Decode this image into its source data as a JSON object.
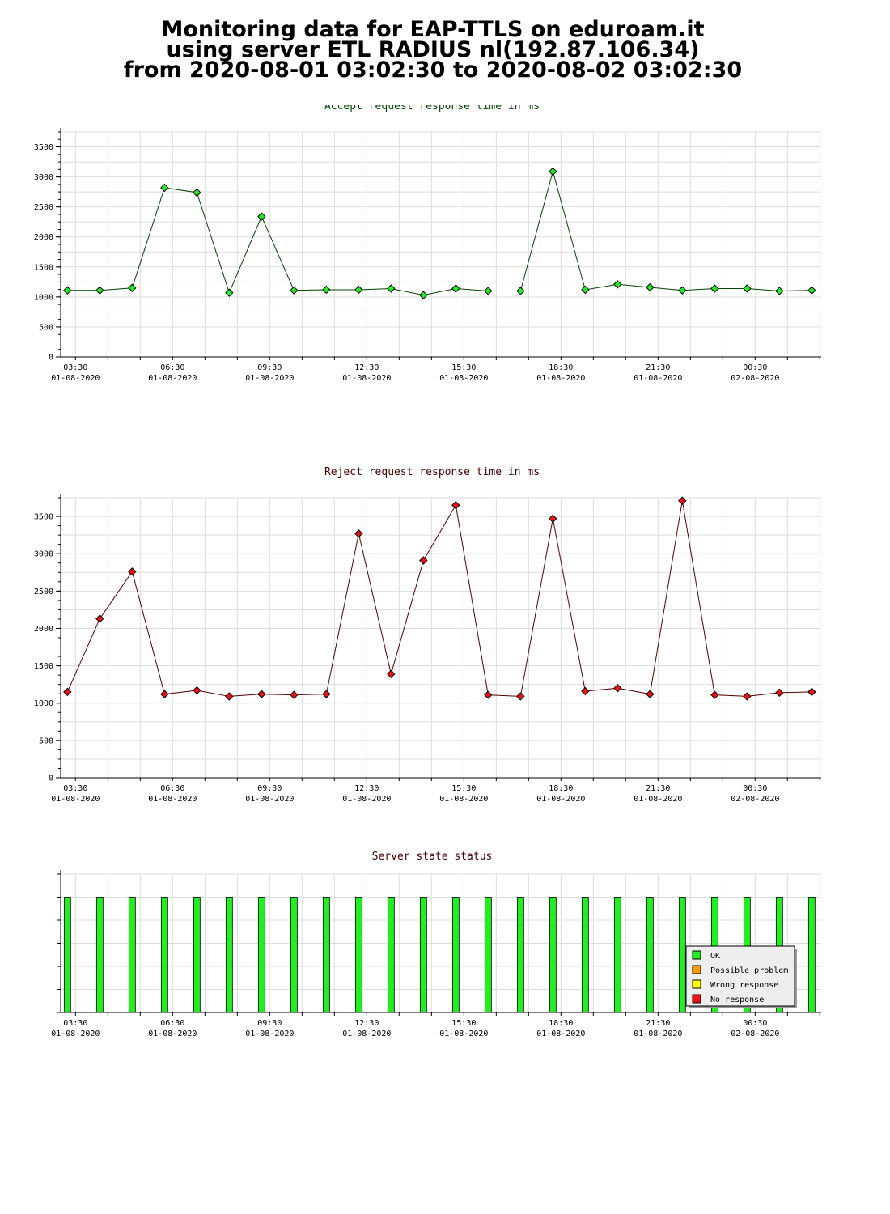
{
  "page": {
    "title_lines": [
      "Monitoring data for EAP-TTLS on eduroam.it",
      "using server ETL RADIUS nl(192.87.106.34)",
      "from 2020-08-01 03:02:30 to 2020-08-02 03:02:30"
    ]
  },
  "x_axis": {
    "time_labels": [
      "03:30",
      "06:30",
      "09:30",
      "12:30",
      "15:30",
      "18:30",
      "21:30",
      "00:30"
    ],
    "date_labels": [
      "01-08-2020",
      "01-08-2020",
      "01-08-2020",
      "01-08-2020",
      "01-08-2020",
      "01-08-2020",
      "01-08-2020",
      "02-08-2020"
    ]
  },
  "chart_data": [
    {
      "type": "line",
      "title": "Accept request response time in ms",
      "title_color": "#004400",
      "line_color": "#004400",
      "marker_color": "#22ee22",
      "grid": true,
      "ylim": [
        0,
        3750
      ],
      "yticks": [
        0,
        500,
        1000,
        1500,
        2000,
        2500,
        3000,
        3500
      ],
      "series": [
        {
          "x": [
            "03:15",
            "04:15",
            "05:15",
            "06:15",
            "07:15",
            "08:15",
            "09:15",
            "10:15",
            "11:15",
            "12:15",
            "13:15",
            "14:15",
            "15:15",
            "16:15",
            "17:15",
            "18:15",
            "19:15",
            "20:15",
            "21:15",
            "22:15",
            "23:15",
            "00:15",
            "01:15",
            "02:15"
          ],
          "values": [
            1110,
            1110,
            1150,
            2820,
            2740,
            1070,
            2340,
            1110,
            1120,
            1120,
            1140,
            1030,
            1140,
            1100,
            1100,
            3090,
            1120,
            1210,
            1160,
            1110,
            1140,
            1140,
            1100,
            1110
          ]
        }
      ]
    },
    {
      "type": "line",
      "title": "Reject request response time in ms",
      "title_color": "#440000",
      "line_color": "#550000",
      "marker_color": "#ee1111",
      "grid": true,
      "ylim": [
        0,
        3750
      ],
      "yticks": [
        0,
        500,
        1000,
        1500,
        2000,
        2500,
        3000,
        3500
      ],
      "series": [
        {
          "x": [
            "03:15",
            "04:15",
            "05:15",
            "06:15",
            "07:15",
            "08:15",
            "09:15",
            "10:15",
            "11:15",
            "12:15",
            "13:15",
            "14:15",
            "15:15",
            "16:15",
            "17:15",
            "18:15",
            "19:15",
            "20:15",
            "21:15",
            "22:15",
            "23:15",
            "00:15",
            "01:15",
            "02:15"
          ],
          "values": [
            1150,
            2130,
            2760,
            1120,
            1170,
            1090,
            1120,
            1110,
            1120,
            3270,
            1390,
            2910,
            3650,
            1110,
            1090,
            3470,
            1160,
            1200,
            1120,
            3710,
            1110,
            1090,
            1140,
            1150
          ]
        }
      ]
    },
    {
      "type": "bar",
      "title": "Server state status",
      "title_color": "#440000",
      "grid": true,
      "x": [
        "03:15",
        "04:15",
        "05:15",
        "06:15",
        "07:15",
        "08:15",
        "09:15",
        "10:15",
        "11:15",
        "12:15",
        "13:15",
        "14:15",
        "15:15",
        "16:15",
        "17:15",
        "18:15",
        "19:15",
        "20:15",
        "21:15",
        "22:15",
        "23:15",
        "00:15",
        "01:15",
        "02:15"
      ],
      "states": [
        "OK",
        "OK",
        "OK",
        "OK",
        "OK",
        "OK",
        "OK",
        "OK",
        "OK",
        "OK",
        "OK",
        "OK",
        "OK",
        "OK",
        "OK",
        "OK",
        "OK",
        "OK",
        "OK",
        "OK",
        "OK",
        "OK",
        "OK",
        "OK"
      ],
      "legend": [
        {
          "label": "OK",
          "color": "#22ee22"
        },
        {
          "label": "Possible problem",
          "color": "#ff9900"
        },
        {
          "label": "Wrong response",
          "color": "#ffff00"
        },
        {
          "label": "No response",
          "color": "#ee1111"
        }
      ],
      "legend_position": "bottom-right"
    }
  ]
}
